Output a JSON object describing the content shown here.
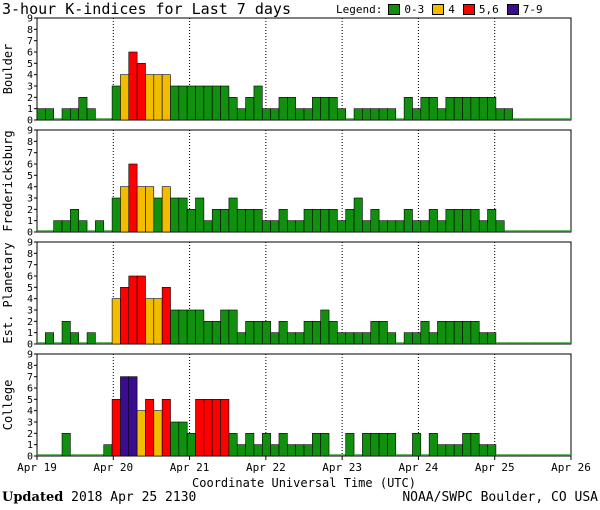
{
  "header": {
    "title": "3-hour K-indices for Last 7 days",
    "legend_title": "Legend:"
  },
  "legend": [
    {
      "label": "0-3",
      "color": "#11900f"
    },
    {
      "label": "4",
      "color": "#f2bd00"
    },
    {
      "label": "5,6",
      "color": "#ff0000"
    },
    {
      "label": "7-9",
      "color": "#3a0d8e"
    }
  ],
  "footer": {
    "updated_label": "Updated",
    "updated_value": "2018 Apr 25 2130",
    "source": "NOAA/SWPC Boulder, CO USA"
  },
  "chart_data": [
    {
      "type": "bar",
      "title": "Boulder",
      "ylabel": "Boulder",
      "ylim": [
        0,
        9
      ],
      "yticks": [
        0,
        1,
        2,
        3,
        4,
        5,
        6,
        7,
        8,
        9
      ],
      "xlabel": "Coordinate Universal Time (UTC)",
      "xticks": [
        "Apr 19",
        "Apr 20",
        "Apr 21",
        "Apr 22",
        "Apr 23",
        "Apr 24",
        "Apr 25",
        "Apr 26"
      ],
      "bin": "3-hour interval, 8 per day",
      "values": [
        1,
        1,
        0,
        1,
        1,
        2,
        1,
        0,
        0,
        3,
        4,
        6,
        5,
        4,
        4,
        4,
        3,
        3,
        3,
        3,
        3,
        3,
        3,
        2,
        1,
        2,
        3,
        1,
        1,
        2,
        2,
        1,
        1,
        2,
        2,
        2,
        1,
        0,
        1,
        1,
        1,
        1,
        1,
        0,
        2,
        1,
        2,
        2,
        1,
        2,
        2,
        2,
        2,
        2,
        2,
        1,
        1,
        0,
        0,
        0,
        0,
        0,
        0,
        0
      ]
    },
    {
      "type": "bar",
      "title": "Fredericksburg",
      "ylabel": "Fredericksburg",
      "ylim": [
        0,
        9
      ],
      "yticks": [
        0,
        1,
        2,
        3,
        4,
        5,
        6,
        7,
        8,
        9
      ],
      "bin": "3-hour interval, 8 per day",
      "values": [
        0,
        0,
        1,
        1,
        2,
        1,
        0,
        1,
        0,
        3,
        4,
        6,
        4,
        4,
        3,
        4,
        3,
        3,
        2,
        3,
        1,
        2,
        2,
        3,
        2,
        2,
        2,
        1,
        1,
        2,
        1,
        1,
        2,
        2,
        2,
        2,
        1,
        2,
        3,
        1,
        2,
        1,
        1,
        1,
        2,
        1,
        1,
        2,
        1,
        2,
        2,
        2,
        2,
        1,
        2,
        1,
        0,
        0,
        0,
        0,
        0,
        0,
        0,
        0
      ]
    },
    {
      "type": "bar",
      "title": "Est. Planetary",
      "ylabel": "Est. Planetary",
      "ylim": [
        0,
        9
      ],
      "yticks": [
        0,
        1,
        2,
        3,
        4,
        5,
        6,
        7,
        8,
        9
      ],
      "bin": "3-hour interval, 8 per day",
      "values": [
        0,
        1,
        0,
        2,
        1,
        0,
        1,
        0,
        0,
        4,
        5,
        6,
        6,
        4,
        4,
        5,
        3,
        3,
        3,
        3,
        2,
        2,
        3,
        3,
        1,
        2,
        2,
        2,
        1,
        2,
        1,
        1,
        2,
        2,
        3,
        2,
        1,
        1,
        1,
        1,
        2,
        2,
        1,
        0,
        1,
        1,
        2,
        1,
        2,
        2,
        2,
        2,
        2,
        1,
        1,
        0,
        0,
        0,
        0,
        0,
        0,
        0,
        0,
        0
      ]
    },
    {
      "type": "bar",
      "title": "College",
      "ylabel": "College",
      "ylim": [
        0,
        9
      ],
      "yticks": [
        0,
        1,
        2,
        3,
        4,
        5,
        6,
        7,
        8,
        9
      ],
      "bin": "3-hour interval, 8 per day",
      "values": [
        0,
        0,
        0,
        2,
        0,
        0,
        0,
        0,
        1,
        5,
        7,
        7,
        4,
        5,
        4,
        5,
        3,
        3,
        2,
        5,
        5,
        5,
        5,
        2,
        1,
        2,
        1,
        2,
        1,
        2,
        1,
        1,
        1,
        2,
        2,
        0,
        0,
        2,
        0,
        2,
        2,
        2,
        2,
        0,
        0,
        2,
        0,
        2,
        1,
        1,
        1,
        2,
        2,
        1,
        1,
        0,
        0,
        0,
        0,
        0,
        0,
        0,
        0,
        0
      ]
    }
  ]
}
